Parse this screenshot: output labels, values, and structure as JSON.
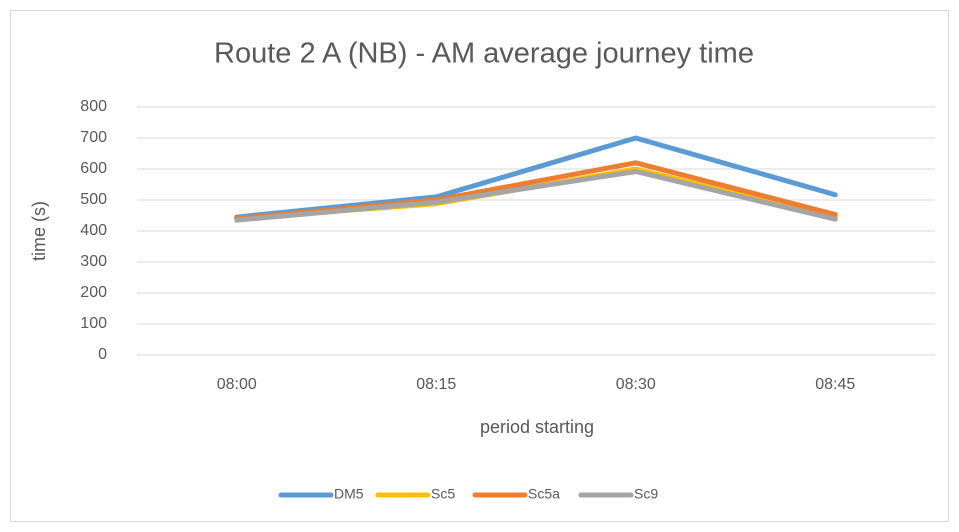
{
  "chart_data": {
    "type": "line",
    "title": "Route 2 A (NB) - AM average journey time",
    "x_label": "period starting",
    "y_label": "time (s)",
    "categories": [
      "08:00",
      "08:15",
      "08:30",
      "08:45"
    ],
    "series": [
      {
        "name": "DM5",
        "color": "#5b9bd5",
        "values": [
          445,
          510,
          700,
          517
        ]
      },
      {
        "name": "Sc5",
        "color": "#ffc000",
        "values": [
          440,
          488,
          600,
          445
        ]
      },
      {
        "name": "Sc5a",
        "color": "#ed7d31",
        "values": [
          440,
          500,
          620,
          453
        ]
      },
      {
        "name": "Sc9",
        "color": "#a5a5a5",
        "values": [
          435,
          493,
          592,
          438
        ]
      }
    ],
    "ylim": [
      0,
      800
    ],
    "yticks": [
      0,
      100,
      200,
      300,
      400,
      500,
      600,
      700,
      800
    ],
    "grid": true,
    "legend": "bottom"
  }
}
